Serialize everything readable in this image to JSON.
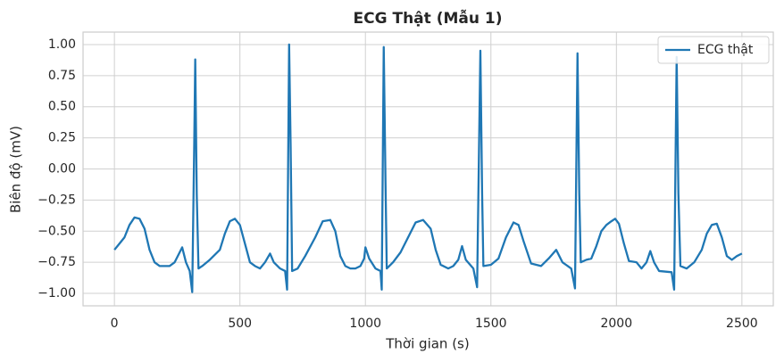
{
  "chart_data": {
    "type": "line",
    "title": "ECG Thật (Mẫu 1)",
    "x_label": "Thời gian (s)",
    "y_label": "Biên độ (mV)",
    "x": [
      0,
      20,
      40,
      60,
      80,
      100,
      120,
      140,
      160,
      180,
      200,
      220,
      240,
      260,
      270,
      285,
      300,
      310,
      318,
      322,
      328,
      335,
      350,
      380,
      420,
      440,
      460,
      480,
      500,
      520,
      540,
      560,
      580,
      600,
      620,
      635,
      660,
      680,
      688,
      696,
      702,
      708,
      730,
      760,
      800,
      830,
      860,
      880,
      900,
      920,
      940,
      960,
      980,
      995,
      1000,
      1015,
      1040,
      1060,
      1065,
      1073,
      1080,
      1085,
      1110,
      1140,
      1170,
      1200,
      1230,
      1260,
      1280,
      1300,
      1330,
      1350,
      1370,
      1385,
      1400,
      1430,
      1445,
      1458,
      1465,
      1470,
      1500,
      1530,
      1560,
      1590,
      1610,
      1630,
      1660,
      1700,
      1730,
      1760,
      1785,
      1820,
      1835,
      1845,
      1852,
      1858,
      1880,
      1900,
      1920,
      1940,
      1960,
      1980,
      1995,
      2010,
      2030,
      2050,
      2080,
      2100,
      2120,
      2135,
      2150,
      2170,
      2220,
      2230,
      2240,
      2247,
      2255,
      2280,
      2310,
      2340,
      2360,
      2380,
      2400,
      2420,
      2440,
      2460,
      2480,
      2500
    ],
    "series": [
      {
        "name": "ECG thật",
        "color": "#1f77b4",
        "values": [
          -0.65,
          -0.6,
          -0.55,
          -0.45,
          -0.39,
          -0.4,
          -0.48,
          -0.65,
          -0.75,
          -0.78,
          -0.78,
          -0.78,
          -0.75,
          -0.67,
          -0.63,
          -0.75,
          -0.82,
          -0.99,
          0.2,
          0.88,
          -0.2,
          -0.8,
          -0.78,
          -0.73,
          -0.65,
          -0.52,
          -0.42,
          -0.4,
          -0.45,
          -0.6,
          -0.75,
          -0.78,
          -0.8,
          -0.75,
          -0.68,
          -0.75,
          -0.8,
          -0.82,
          -0.97,
          1.0,
          0.2,
          -0.82,
          -0.8,
          -0.7,
          -0.55,
          -0.42,
          -0.41,
          -0.5,
          -0.7,
          -0.78,
          -0.8,
          -0.8,
          -0.78,
          -0.72,
          -0.63,
          -0.72,
          -0.8,
          -0.82,
          -0.97,
          0.98,
          -0.1,
          -0.8,
          -0.75,
          -0.67,
          -0.55,
          -0.43,
          -0.41,
          -0.48,
          -0.65,
          -0.77,
          -0.8,
          -0.78,
          -0.73,
          -0.62,
          -0.73,
          -0.8,
          -0.95,
          0.95,
          -0.2,
          -0.78,
          -0.77,
          -0.72,
          -0.55,
          -0.43,
          -0.45,
          -0.58,
          -0.76,
          -0.78,
          -0.72,
          -0.65,
          -0.75,
          -0.8,
          -0.96,
          0.93,
          -0.2,
          -0.75,
          -0.73,
          -0.72,
          -0.62,
          -0.5,
          -0.45,
          -0.42,
          -0.4,
          -0.44,
          -0.6,
          -0.74,
          -0.75,
          -0.8,
          -0.75,
          -0.66,
          -0.75,
          -0.82,
          -0.83,
          -0.97,
          0.9,
          -0.2,
          -0.78,
          -0.8,
          -0.75,
          -0.65,
          -0.52,
          -0.45,
          -0.44,
          -0.55,
          -0.7,
          -0.73,
          -0.7,
          -0.68
        ]
      }
    ],
    "xlim": [
      -125,
      2625
    ],
    "ylim": [
      -1.1,
      1.1
    ],
    "xticks": [
      0,
      500,
      1000,
      1500,
      2000,
      2500
    ],
    "yticks": [
      {
        "value": -1,
        "label": "−1.00"
      },
      {
        "value": -0.75,
        "label": "−0.75"
      },
      {
        "value": -0.5,
        "label": "−0.50"
      },
      {
        "value": -0.25,
        "label": "−0.25"
      },
      {
        "value": 0,
        "label": "0.00"
      },
      {
        "value": 0.25,
        "label": "0.25"
      },
      {
        "value": 0.5,
        "label": "0.50"
      },
      {
        "value": 0.75,
        "label": "0.75"
      },
      {
        "value": 1,
        "label": "1.00"
      }
    ],
    "grid": true,
    "legend": "upper right"
  }
}
